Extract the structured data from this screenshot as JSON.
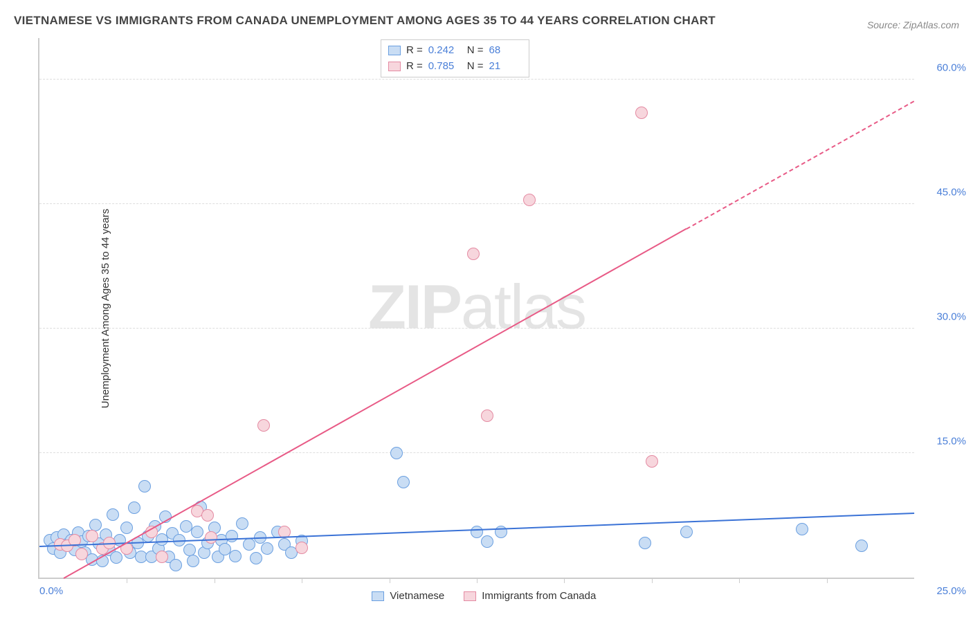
{
  "title": "VIETNAMESE VS IMMIGRANTS FROM CANADA UNEMPLOYMENT AMONG AGES 35 TO 44 YEARS CORRELATION CHART",
  "source": "Source: ZipAtlas.com",
  "y_axis_label": "Unemployment Among Ages 35 to 44 years",
  "watermark_bold": "ZIP",
  "watermark_light": "atlas",
  "x_origin": "0.0%",
  "x_max": "25.0%",
  "xlim": [
    0,
    25
  ],
  "ylim": [
    0,
    65
  ],
  "grid_color": "#dddddd",
  "axis_color": "#cccccc",
  "title_color": "#444444",
  "tick_color_blue": "#4a7fd8",
  "background_color": "#ffffff",
  "y_ticks": [
    {
      "v": 15.0,
      "label": "15.0%"
    },
    {
      "v": 30.0,
      "label": "30.0%"
    },
    {
      "v": 45.0,
      "label": "45.0%"
    },
    {
      "v": 60.0,
      "label": "60.0%"
    }
  ],
  "x_tick_positions": [
    2.5,
    5.0,
    7.5,
    10.0,
    12.5,
    15.0,
    17.5,
    20.0,
    22.5
  ],
  "series": [
    {
      "name": "Vietnamese",
      "legend_label": "Vietnamese",
      "R_label": "R =",
      "R_value": "0.242",
      "N_label": "N =",
      "N_value": "68",
      "fill": "#c9ddf4",
      "stroke": "#6a9fe0",
      "trend_color": "#3a72d6",
      "marker_radius": 9,
      "trend": {
        "x1": 0,
        "y1": 3.8,
        "x2": 25,
        "y2": 7.8
      },
      "points": [
        [
          0.3,
          4.5
        ],
        [
          0.4,
          3.5
        ],
        [
          0.5,
          4.8
        ],
        [
          0.6,
          3.0
        ],
        [
          0.7,
          5.2
        ],
        [
          0.8,
          4.0
        ],
        [
          0.9,
          4.5
        ],
        [
          1.0,
          3.3
        ],
        [
          1.1,
          5.4
        ],
        [
          1.2,
          4.3
        ],
        [
          1.3,
          3.0
        ],
        [
          1.4,
          5.0
        ],
        [
          1.5,
          2.2
        ],
        [
          1.6,
          6.3
        ],
        [
          1.7,
          4.1
        ],
        [
          1.8,
          2.0
        ],
        [
          1.9,
          5.2
        ],
        [
          2.0,
          3.3
        ],
        [
          2.1,
          7.6
        ],
        [
          2.2,
          2.4
        ],
        [
          2.3,
          4.5
        ],
        [
          2.5,
          6.0
        ],
        [
          2.6,
          3.0
        ],
        [
          2.7,
          8.4
        ],
        [
          2.8,
          4.2
        ],
        [
          2.9,
          2.5
        ],
        [
          3.0,
          11.0
        ],
        [
          3.1,
          5.0
        ],
        [
          3.2,
          2.5
        ],
        [
          3.3,
          6.2
        ],
        [
          3.4,
          3.5
        ],
        [
          3.5,
          4.6
        ],
        [
          3.6,
          7.3
        ],
        [
          3.7,
          2.5
        ],
        [
          3.8,
          5.3
        ],
        [
          3.9,
          1.5
        ],
        [
          4.0,
          4.5
        ],
        [
          4.2,
          6.2
        ],
        [
          4.3,
          3.3
        ],
        [
          4.4,
          2.0
        ],
        [
          4.5,
          5.5
        ],
        [
          4.6,
          8.5
        ],
        [
          4.7,
          3.0
        ],
        [
          4.8,
          4.2
        ],
        [
          5.0,
          6.0
        ],
        [
          5.1,
          2.5
        ],
        [
          5.2,
          4.5
        ],
        [
          5.3,
          3.4
        ],
        [
          5.5,
          5.0
        ],
        [
          5.6,
          2.6
        ],
        [
          5.8,
          6.5
        ],
        [
          6.0,
          4.0
        ],
        [
          6.2,
          2.3
        ],
        [
          6.3,
          4.8
        ],
        [
          6.5,
          3.5
        ],
        [
          6.8,
          5.5
        ],
        [
          7.0,
          4.0
        ],
        [
          7.2,
          3.0
        ],
        [
          7.5,
          4.4
        ],
        [
          10.2,
          15.0
        ],
        [
          10.4,
          11.5
        ],
        [
          12.5,
          5.5
        ],
        [
          12.8,
          4.3
        ],
        [
          13.2,
          5.5
        ],
        [
          17.3,
          4.2
        ],
        [
          18.5,
          5.5
        ],
        [
          21.8,
          5.8
        ],
        [
          23.5,
          3.8
        ]
      ]
    },
    {
      "name": "Immigrants from Canada",
      "legend_label": "Immigrants from Canada",
      "R_label": "R =",
      "R_value": "0.785",
      "N_label": "N =",
      "N_value": "21",
      "fill": "#f7d6dd",
      "stroke": "#e48aa2",
      "trend_color": "#e85a86",
      "marker_radius": 9,
      "trend": {
        "x1": 0.7,
        "y1": 0,
        "x2": 25,
        "y2": 57.5
      },
      "trend_dashed_from_x": 18.5,
      "points": [
        [
          0.6,
          4.0
        ],
        [
          0.8,
          3.8
        ],
        [
          1.0,
          4.5
        ],
        [
          1.2,
          2.8
        ],
        [
          1.5,
          5.0
        ],
        [
          1.8,
          3.5
        ],
        [
          2.0,
          4.2
        ],
        [
          2.5,
          3.5
        ],
        [
          3.2,
          5.5
        ],
        [
          3.5,
          2.5
        ],
        [
          4.5,
          8.0
        ],
        [
          4.8,
          7.5
        ],
        [
          4.9,
          4.8
        ],
        [
          6.4,
          18.3
        ],
        [
          7.0,
          5.5
        ],
        [
          7.5,
          3.6
        ],
        [
          12.4,
          39.0
        ],
        [
          12.8,
          19.5
        ],
        [
          14.0,
          45.5
        ],
        [
          17.2,
          56.0
        ],
        [
          17.5,
          14.0
        ]
      ]
    }
  ]
}
